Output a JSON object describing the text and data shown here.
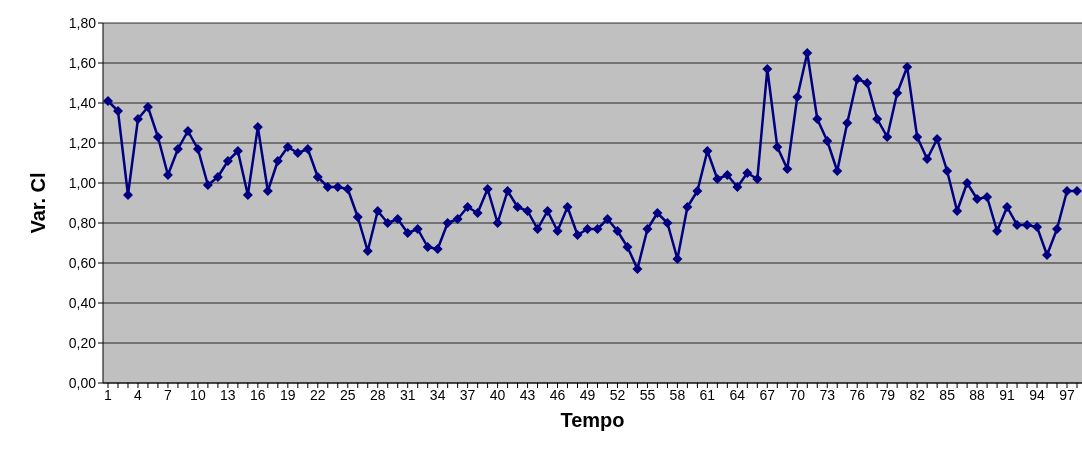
{
  "chart_data": {
    "type": "line",
    "xlabel": "Tempo",
    "ylabel": "Var. Cl",
    "categories": [
      "1",
      null,
      null,
      "4",
      null,
      null,
      "7",
      null,
      null,
      "10",
      null,
      null,
      "13",
      null,
      null,
      "16",
      null,
      null,
      "19",
      null,
      null,
      "22",
      null,
      null,
      "25",
      null,
      null,
      "28",
      null,
      null,
      "31",
      null,
      null,
      "34",
      null,
      null,
      "37",
      null,
      null,
      "40",
      null,
      null,
      "43",
      null,
      null,
      "46",
      null,
      null,
      "49",
      null,
      null,
      "52",
      null,
      null,
      "55",
      null,
      null,
      "58",
      null,
      null,
      "61",
      null,
      null,
      "64",
      null,
      null,
      "67",
      null,
      null,
      "70",
      null,
      null,
      "73",
      null,
      null,
      "76",
      null,
      null,
      "79",
      null,
      null,
      "82",
      null,
      null,
      "85",
      null,
      null,
      "88",
      null,
      null,
      "91",
      null,
      null,
      "94",
      null,
      null,
      "97",
      null
    ],
    "series": [
      {
        "color": "#000080",
        "values": [
          1.41,
          1.36,
          0.94,
          1.32,
          1.38,
          1.23,
          1.04,
          1.17,
          1.26,
          1.17,
          0.99,
          1.03,
          1.11,
          1.16,
          0.94,
          1.28,
          0.96,
          1.11,
          1.18,
          1.15,
          1.17,
          1.03,
          0.98,
          0.98,
          0.97,
          0.83,
          0.66,
          0.86,
          0.8,
          0.82,
          0.75,
          0.77,
          0.68,
          0.67,
          0.8,
          0.82,
          0.88,
          0.85,
          0.97,
          0.8,
          0.96,
          0.88,
          0.86,
          0.77,
          0.86,
          0.76,
          0.88,
          0.74,
          0.77,
          0.77,
          0.82,
          0.76,
          0.68,
          0.57,
          0.77,
          0.85,
          0.8,
          0.62,
          0.88,
          0.96,
          1.16,
          1.02,
          1.04,
          0.98,
          1.05,
          1.02,
          1.57,
          1.18,
          1.07,
          1.43,
          1.65,
          1.32,
          1.21,
          1.06,
          1.3,
          1.52,
          1.5,
          1.32,
          1.23,
          1.45,
          1.58,
          1.23,
          1.12,
          1.22,
          1.06,
          0.86,
          1.0,
          0.92,
          0.93,
          0.76,
          0.88,
          0.79,
          0.79,
          0.78,
          0.64,
          0.77,
          0.96,
          0.96
        ]
      }
    ],
    "ylim": [
      0,
      1.8
    ],
    "yticks": [
      {
        "value": 0,
        "label": "0,00"
      },
      {
        "value": 0.2,
        "label": "0,20"
      },
      {
        "value": 0.4,
        "label": "0,40"
      },
      {
        "value": 0.6,
        "label": "0,60"
      },
      {
        "value": 0.8,
        "label": "0,80"
      },
      {
        "value": 1.0,
        "label": "1,00"
      },
      {
        "value": 1.2,
        "label": "1,20"
      },
      {
        "value": 1.4,
        "label": "1,40"
      },
      {
        "value": 1.6,
        "label": "1,60"
      },
      {
        "value": 1.8,
        "label": "1,80"
      }
    ],
    "grid": "y",
    "legend": false,
    "marker": "diamond",
    "line_style": "solid"
  }
}
